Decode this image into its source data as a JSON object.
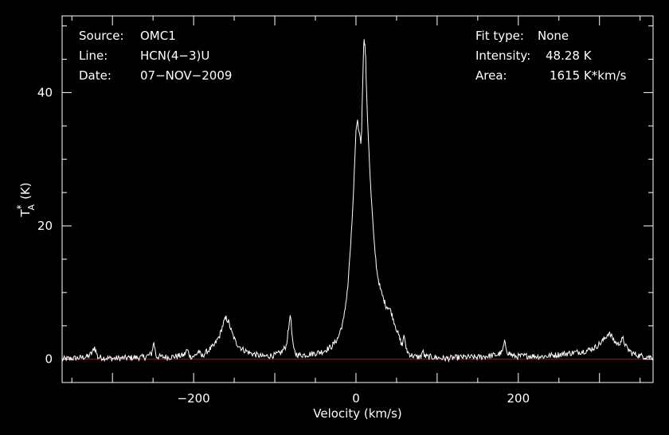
{
  "chart_data": {
    "type": "line",
    "title": "",
    "xlabel": "Velocity (km/s)",
    "ylabel_main": "T",
    "ylabel_sup": "*",
    "ylabel_sub": "A",
    "ylabel_unit": "(K)",
    "xlim": [
      -362,
      366
    ],
    "ylim": [
      -3.5,
      51.5
    ],
    "xticks": [
      -200,
      0,
      200
    ],
    "xtick_labels": [
      "−200",
      "0",
      "200"
    ],
    "yticks": [
      0,
      20,
      40
    ],
    "ytick_labels": [
      "0",
      "20",
      "40"
    ],
    "grid": false,
    "colors": {
      "spectrum": "#ffffff",
      "baseline": "#cc0000",
      "frame": "#ffffff",
      "background": "#000000"
    },
    "info_left": [
      {
        "key": "Source:",
        "value": "OMC1"
      },
      {
        "key": "Line:",
        "value": "HCN(4−3)U"
      },
      {
        "key": "Date:",
        "value": "07−NOV−2009"
      }
    ],
    "info_right": [
      {
        "key": "Fit type:",
        "value": "None"
      },
      {
        "key": "Intensity:",
        "value": "48.28 K"
      },
      {
        "key": "Area:",
        "value": "1615 K*km/s"
      }
    ],
    "baseline": {
      "y": 0
    },
    "series": [
      {
        "x": [
          -362,
          -340,
          -330,
          -325,
          -322,
          -318,
          -300,
          -280,
          -260,
          -252,
          -249,
          -246,
          -230,
          -212,
          -208,
          -204,
          -198,
          -194,
          -190,
          -185,
          -175,
          -168,
          -163,
          -160,
          -157,
          -153,
          -148,
          -140,
          -130,
          -115,
          -100,
          -92,
          -86,
          -83,
          -81,
          -79,
          -77,
          -74,
          -70,
          -60,
          -50,
          -40,
          -30,
          -22,
          -15,
          -10,
          -5,
          -2,
          0,
          2,
          4,
          6,
          7,
          8,
          9,
          10,
          11,
          12,
          13,
          15,
          18,
          22,
          26,
          30,
          34,
          37,
          40,
          43,
          46,
          50,
          54,
          57,
          59,
          61,
          64,
          68,
          75,
          80,
          82,
          85,
          95,
          110,
          130,
          150,
          165,
          175,
          180,
          183,
          187,
          195,
          210,
          230,
          250,
          270,
          285,
          295,
          302,
          307,
          311,
          315,
          319,
          323,
          326,
          329,
          333,
          340,
          350,
          366
        ],
        "y": [
          0.0,
          0.2,
          0.4,
          1.0,
          1.8,
          0.3,
          0.1,
          0.2,
          0.3,
          0.8,
          2.5,
          0.4,
          0.3,
          0.6,
          1.4,
          0.4,
          0.5,
          1.2,
          0.4,
          1.0,
          2.0,
          3.5,
          5.5,
          6.2,
          5.6,
          4.0,
          2.5,
          1.5,
          0.9,
          0.4,
          0.6,
          1.0,
          2.0,
          4.5,
          7.0,
          4.0,
          1.5,
          0.8,
          0.6,
          0.7,
          0.9,
          1.2,
          1.9,
          3.2,
          6.0,
          11.0,
          20.0,
          28.0,
          34.0,
          35.5,
          34.0,
          32.5,
          34.5,
          40.0,
          45.0,
          48.3,
          47.0,
          45.0,
          40.0,
          34.0,
          26.0,
          18.0,
          13.0,
          10.5,
          9.0,
          8.0,
          7.8,
          7.2,
          6.0,
          4.5,
          3.0,
          2.0,
          3.8,
          2.0,
          1.0,
          0.6,
          0.3,
          0.4,
          1.2,
          0.4,
          0.3,
          0.1,
          0.3,
          0.3,
          0.5,
          0.7,
          1.0,
          2.5,
          1.0,
          0.4,
          0.5,
          0.4,
          0.7,
          1.0,
          1.3,
          1.8,
          2.5,
          3.2,
          3.9,
          3.4,
          2.6,
          2.2,
          2.7,
          3.0,
          1.8,
          0.9,
          0.5,
          0.3
        ]
      }
    ]
  }
}
